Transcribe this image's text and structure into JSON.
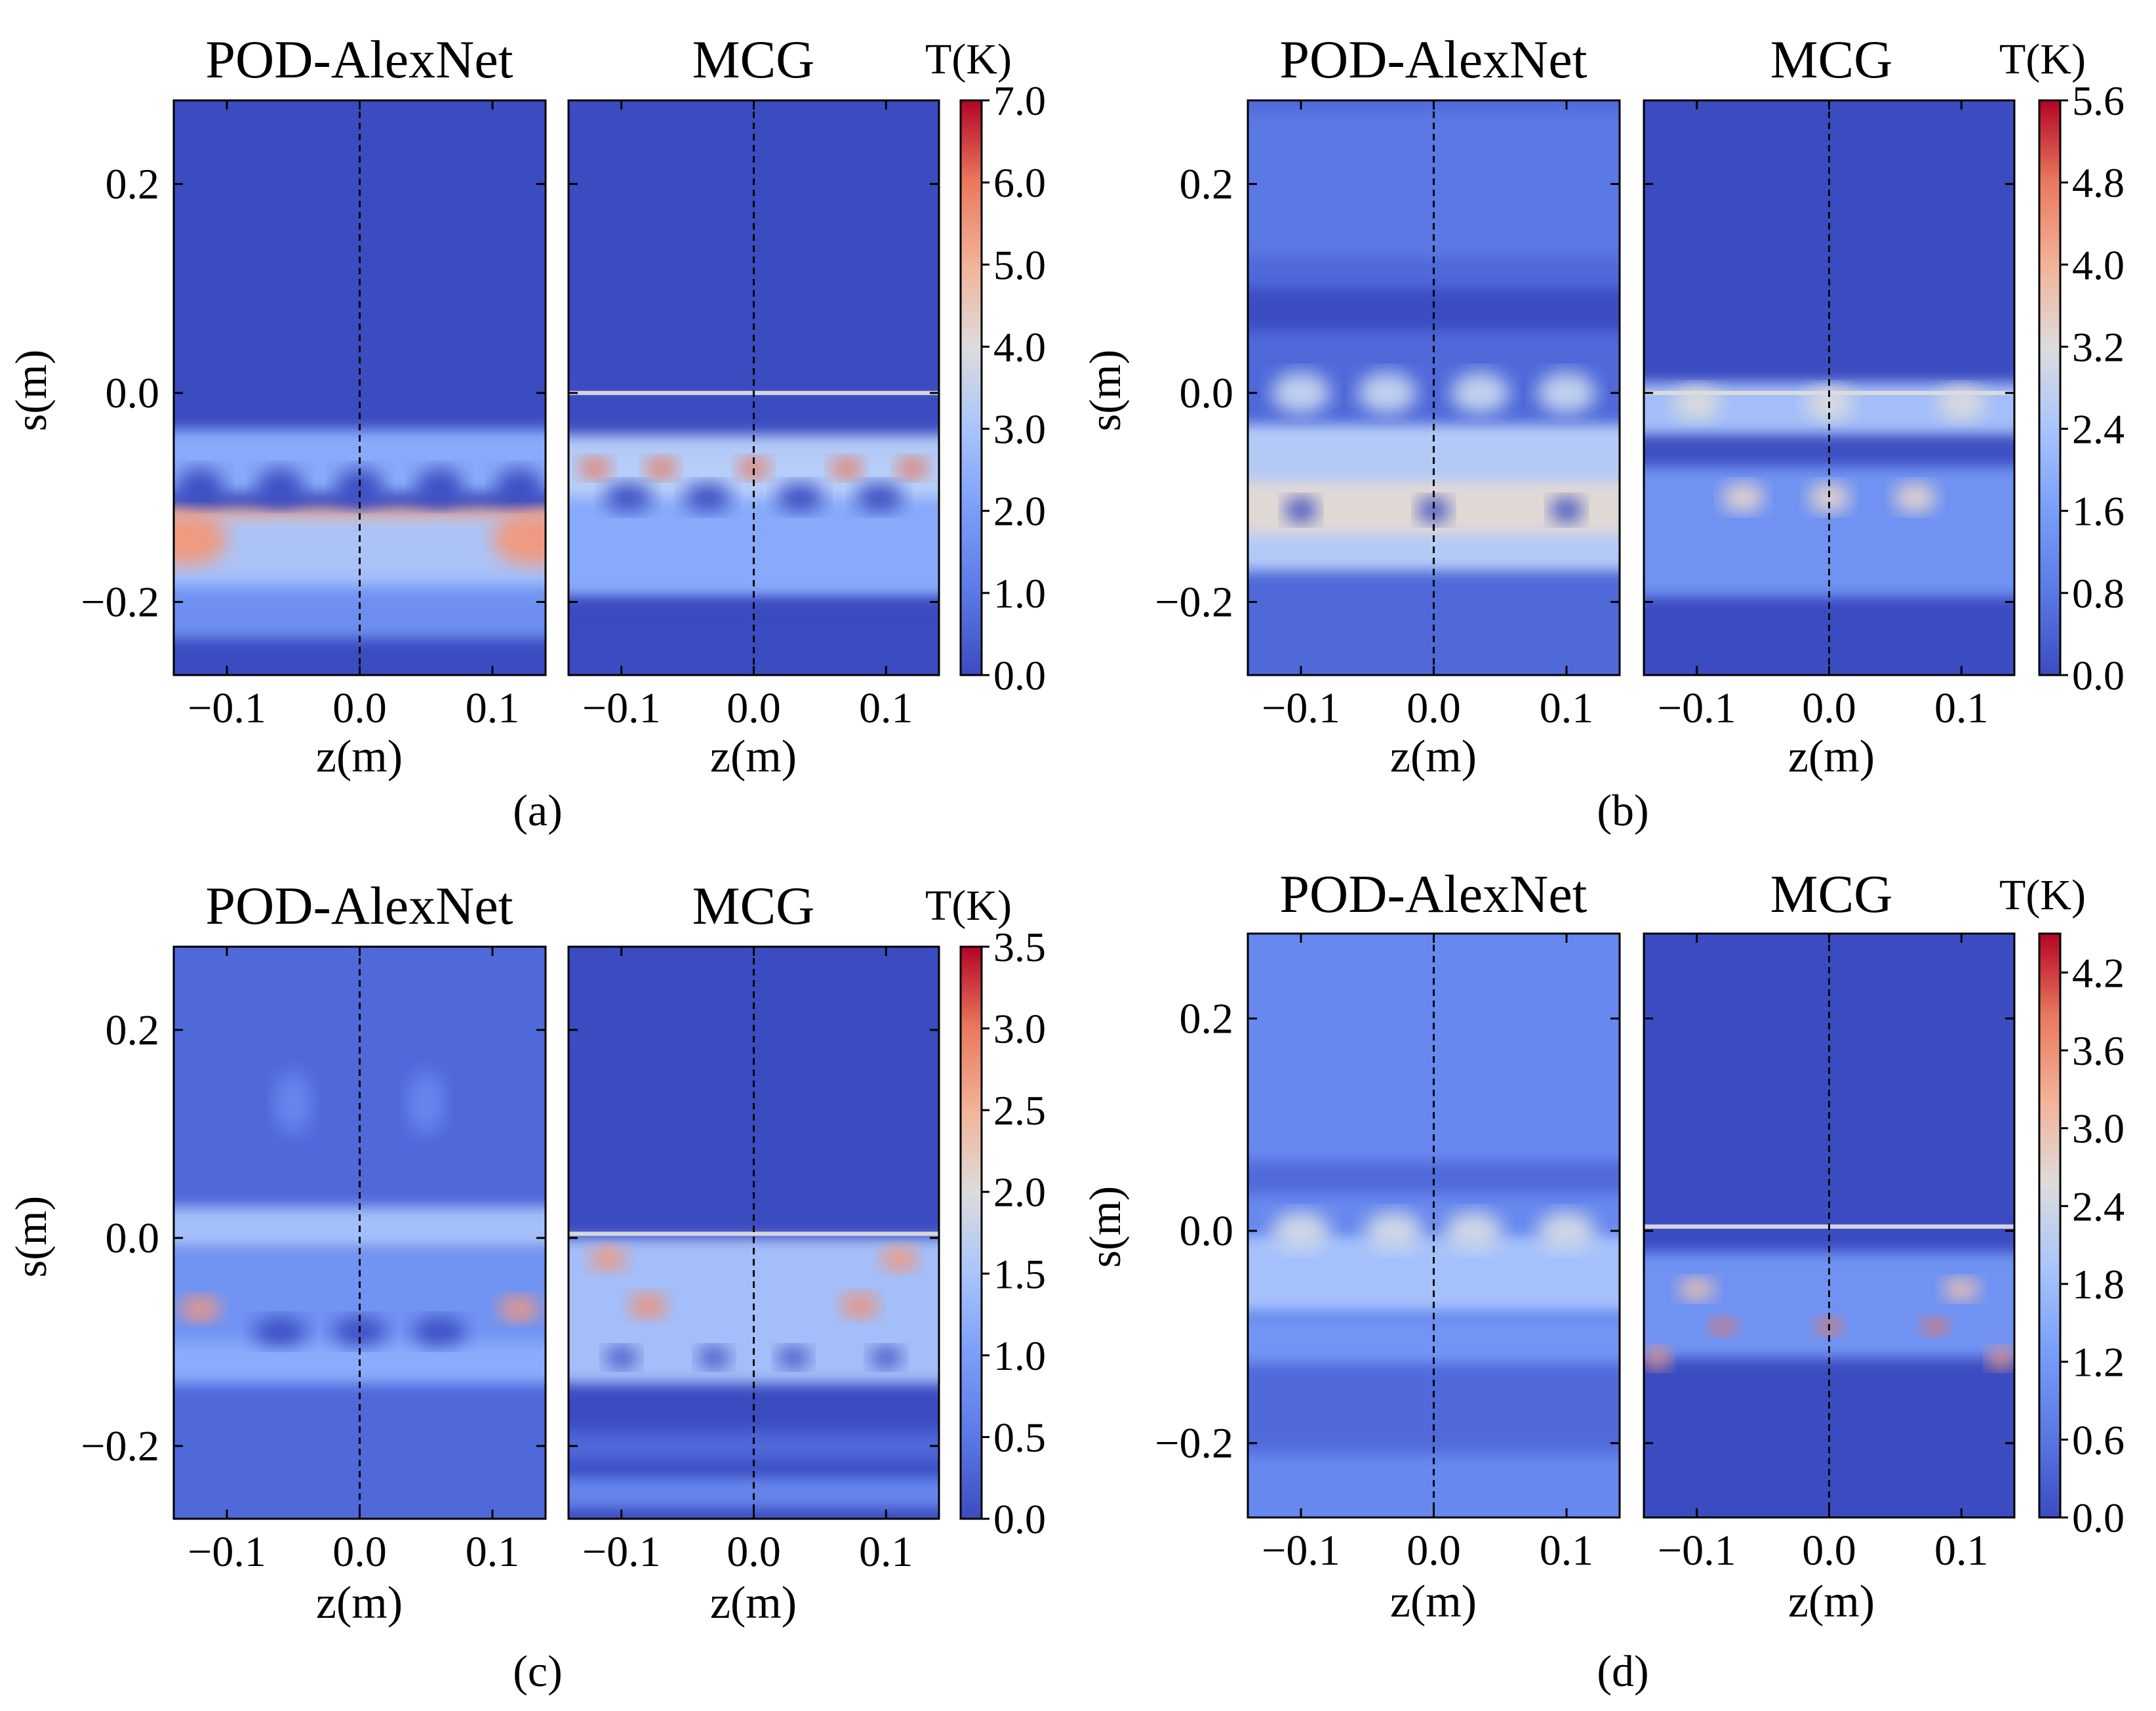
{
  "figure": {
    "colorbar_unit": "T(K)",
    "left_title": "POD-AlexNet",
    "right_title": "MCG",
    "xlabel": "z(m)",
    "ylabel": "s(m)",
    "x_tick_labels": [
      "−0.1",
      "0.0",
      "0.1"
    ],
    "y_tick_labels": [
      "0.2",
      "0.0",
      "−0.2"
    ]
  },
  "colors": {
    "base_dark": "#3b4cc0",
    "base_mid": "#4f69d9",
    "light_blue": "#8db0fe",
    "neutral": "#dddcdc",
    "warm": "#f4987a",
    "hot": "#d1493f",
    "max_red": "#b40426"
  },
  "chart_data": [
    {
      "panel": "(a)",
      "type": "heatmap",
      "title_left": "POD-AlexNet",
      "title_right": "MCG",
      "xlabel": "z(m)",
      "ylabel": "s(m)",
      "xlim": [
        -0.14,
        0.14
      ],
      "ylim": [
        -0.27,
        0.28
      ],
      "x_ticks": [
        -0.1,
        0.0,
        0.1
      ],
      "y_ticks": [
        0.2,
        0.0,
        -0.2
      ],
      "colorbar": {
        "label": "T(K)",
        "min": 0.0,
        "max": 7.0,
        "ticks": [
          "7.0",
          "6.0",
          "5.0",
          "4.0",
          "3.0",
          "2.0",
          "1.0",
          "0.0"
        ]
      },
      "left_fill": "#3b4cc0",
      "right_fill": "#3b4cc0",
      "left_features": [
        {
          "shape": "band",
          "s": -0.14,
          "ds": 0.06,
          "color": "#f2b49a"
        },
        {
          "shape": "band",
          "s": -0.16,
          "ds": 0.08,
          "color": "#a9c5fc"
        },
        {
          "shape": "band",
          "s": -0.21,
          "ds": 0.05,
          "color": "#6f92f3"
        },
        {
          "shape": "band",
          "s": -0.065,
          "ds": 0.06,
          "color": "#8db0fe"
        },
        {
          "shape": "blobs",
          "s": -0.09,
          "z": [
            -0.12,
            -0.06,
            0.0,
            0.06,
            0.12
          ],
          "dz": 0.018,
          "ds": 0.018,
          "color": "#3b4cc0"
        },
        {
          "shape": "blobs",
          "s": -0.14,
          "z": [
            -0.13,
            0.13
          ],
          "dz": 0.03,
          "ds": 0.025,
          "color": "#f4987a"
        }
      ],
      "right_features": [
        {
          "shape": "band",
          "s": -0.13,
          "ds": 0.14,
          "color": "#8db0fe"
        },
        {
          "shape": "band",
          "s": -0.07,
          "ds": 0.06,
          "color": "#b9d0f9"
        },
        {
          "shape": "band",
          "s": 0.0,
          "ds": 0.004,
          "color": "#dddcdc"
        },
        {
          "shape": "band",
          "s": -0.21,
          "ds": 0.03,
          "color": "#3b4cc0"
        },
        {
          "shape": "blobs",
          "s": -0.072,
          "z": [
            -0.12,
            -0.07,
            0.0,
            0.07,
            0.12
          ],
          "dz": 0.012,
          "ds": 0.01,
          "color": "#e9785d"
        },
        {
          "shape": "blobs",
          "s": -0.1,
          "z": [
            -0.095,
            -0.035,
            0.035,
            0.095
          ],
          "dz": 0.018,
          "ds": 0.014,
          "color": "#3b4cc0"
        }
      ]
    },
    {
      "panel": "(b)",
      "type": "heatmap",
      "title_left": "POD-AlexNet",
      "title_right": "MCG",
      "xlabel": "z(m)",
      "ylabel": "s(m)",
      "xlim": [
        -0.14,
        0.14
      ],
      "ylim": [
        -0.27,
        0.28
      ],
      "x_ticks": [
        -0.1,
        0.0,
        0.1
      ],
      "y_ticks": [
        0.2,
        0.0,
        -0.2
      ],
      "colorbar": {
        "label": "T(K)",
        "min": 0.0,
        "max": 5.6,
        "ticks": [
          "5.6",
          "4.8",
          "4.0",
          "3.2",
          "2.4",
          "1.6",
          "0.8",
          "0.0"
        ]
      },
      "left_fill": "#4f69d9",
      "right_fill": "#3b4cc0",
      "left_features": [
        {
          "shape": "band",
          "s": 0.2,
          "ds": 0.14,
          "color": "#5b7ae5"
        },
        {
          "shape": "band",
          "s": 0.08,
          "ds": 0.04,
          "color": "#3b4cc0"
        },
        {
          "shape": "band",
          "s": -0.1,
          "ds": 0.14,
          "color": "#b9d0f9"
        },
        {
          "shape": "band",
          "s": -0.11,
          "ds": 0.05,
          "color": "#e3d9d3"
        },
        {
          "shape": "blobs",
          "s": 0.0,
          "z": [
            -0.1,
            -0.035,
            0.035,
            0.1
          ],
          "dz": 0.022,
          "ds": 0.02,
          "color": "#c7d7f0"
        },
        {
          "shape": "blobs",
          "s": -0.112,
          "z": [
            -0.1,
            0.0,
            0.1
          ],
          "dz": 0.012,
          "ds": 0.012,
          "color": "#3b4cc0"
        }
      ],
      "right_features": [
        {
          "shape": "band",
          "s": -0.12,
          "ds": 0.15,
          "color": "#7396f5"
        },
        {
          "shape": "band",
          "s": -0.02,
          "ds": 0.06,
          "color": "#a9c5fc"
        },
        {
          "shape": "band",
          "s": -0.055,
          "ds": 0.03,
          "color": "#3b4cc0"
        },
        {
          "shape": "band",
          "s": 0.0,
          "ds": 0.004,
          "color": "#dddcdc"
        },
        {
          "shape": "blobs",
          "s": -0.01,
          "z": [
            -0.1,
            0.0,
            0.1
          ],
          "dz": 0.018,
          "ds": 0.016,
          "color": "#dddcdc"
        },
        {
          "shape": "blobs",
          "s": -0.1,
          "z": [
            -0.065,
            0.0,
            0.065
          ],
          "dz": 0.016,
          "ds": 0.014,
          "color": "#e8d6cc"
        }
      ]
    },
    {
      "panel": "(c)",
      "type": "heatmap",
      "title_left": "POD-AlexNet",
      "title_right": "MCG",
      "xlabel": "z(m)",
      "ylabel": "s(m)",
      "xlim": [
        -0.14,
        0.14
      ],
      "ylim": [
        -0.27,
        0.28
      ],
      "x_ticks": [
        -0.1,
        0.0,
        0.1
      ],
      "y_ticks": [
        0.2,
        0.0,
        -0.2
      ],
      "colorbar": {
        "label": "T(K)",
        "min": 0.0,
        "max": 3.5,
        "ticks": [
          "3.5",
          "3.0",
          "2.5",
          "2.0",
          "1.5",
          "1.0",
          "0.5",
          "0.0"
        ]
      },
      "left_fill": "#4f69d9",
      "right_fill": "#3b4cc0",
      "left_features": [
        {
          "shape": "band",
          "s": -0.06,
          "ds": 0.1,
          "color": "#7396f5"
        },
        {
          "shape": "band",
          "s": -0.12,
          "ds": 0.04,
          "color": "#8db0fe"
        },
        {
          "shape": "band",
          "s": 0.01,
          "ds": 0.04,
          "color": "#a9c5fc"
        },
        {
          "shape": "blobs",
          "s": 0.13,
          "z": [
            -0.05,
            0.05
          ],
          "dz": 0.014,
          "ds": 0.03,
          "color": "#6788ee"
        },
        {
          "shape": "blobs",
          "s": -0.068,
          "z": [
            -0.12,
            0.12
          ],
          "dz": 0.015,
          "ds": 0.012,
          "color": "#f4987a"
        },
        {
          "shape": "blobs",
          "s": -0.09,
          "z": [
            -0.06,
            0.0,
            0.06
          ],
          "dz": 0.02,
          "ds": 0.014,
          "color": "#3b4cc0"
        }
      ],
      "right_features": [
        {
          "shape": "band",
          "s": -0.07,
          "ds": 0.14,
          "color": "#a9c5fc"
        },
        {
          "shape": "band",
          "s": 0.004,
          "ds": 0.004,
          "color": "#dddcdc"
        },
        {
          "shape": "band",
          "s": -0.2,
          "ds": 0.03,
          "color": "#4f69d9"
        },
        {
          "shape": "band",
          "s": -0.245,
          "ds": 0.03,
          "color": "#6788ee"
        },
        {
          "shape": "blobs",
          "s": -0.02,
          "z": [
            -0.11,
            0.11
          ],
          "dz": 0.014,
          "ds": 0.012,
          "color": "#f4987a"
        },
        {
          "shape": "blobs",
          "s": -0.065,
          "z": [
            -0.08,
            0.08
          ],
          "dz": 0.014,
          "ds": 0.012,
          "color": "#f29274"
        },
        {
          "shape": "blobs",
          "s": -0.115,
          "z": [
            -0.1,
            -0.03,
            0.03,
            0.1
          ],
          "dz": 0.012,
          "ds": 0.01,
          "color": "#3b4cc0"
        }
      ]
    },
    {
      "panel": "(d)",
      "type": "heatmap",
      "title_left": "POD-AlexNet",
      "title_right": "MCG",
      "xlabel": "z(m)",
      "ylabel": "s(m)",
      "xlim": [
        -0.14,
        0.14
      ],
      "ylim": [
        -0.27,
        0.28
      ],
      "x_ticks": [
        -0.1,
        0.0,
        0.1
      ],
      "y_ticks": [
        0.2,
        0.0,
        -0.2
      ],
      "colorbar": {
        "label": "T(K)",
        "min": 0.0,
        "max": 4.5,
        "ticks": [
          "4.2",
          "3.6",
          "3.0",
          "2.4",
          "1.8",
          "1.2",
          "0.6",
          "0.0"
        ]
      },
      "left_fill": "#6788ee",
      "right_fill": "#3b4cc0",
      "left_features": [
        {
          "shape": "band",
          "s": 0.05,
          "ds": 0.03,
          "color": "#4f69d9"
        },
        {
          "shape": "band",
          "s": -0.16,
          "ds": 0.1,
          "color": "#4f69d9"
        },
        {
          "shape": "band",
          "s": -0.04,
          "ds": 0.07,
          "color": "#a9c5fc"
        },
        {
          "shape": "band",
          "s": -0.105,
          "ds": 0.04,
          "color": "#7396f5"
        },
        {
          "shape": "blobs",
          "s": 0.0,
          "z": [
            -0.1,
            -0.03,
            0.03,
            0.1
          ],
          "dz": 0.022,
          "ds": 0.018,
          "color": "#d4dbe6"
        }
      ],
      "right_features": [
        {
          "shape": "band",
          "s": -0.07,
          "ds": 0.1,
          "color": "#7396f5"
        },
        {
          "shape": "band",
          "s": 0.004,
          "ds": 0.004,
          "color": "#dddcdc"
        },
        {
          "shape": "blobs",
          "s": -0.09,
          "z": [
            -0.08,
            0.0,
            0.08
          ],
          "dz": 0.01,
          "ds": 0.008,
          "color": "#e9785d"
        },
        {
          "shape": "blobs",
          "s": -0.055,
          "z": [
            -0.1,
            0.1
          ],
          "dz": 0.014,
          "ds": 0.01,
          "color": "#f4c5ad"
        },
        {
          "shape": "blobs",
          "s": -0.12,
          "z": [
            -0.13,
            0.13
          ],
          "dz": 0.01,
          "ds": 0.01,
          "color": "#f4987a"
        }
      ]
    }
  ]
}
